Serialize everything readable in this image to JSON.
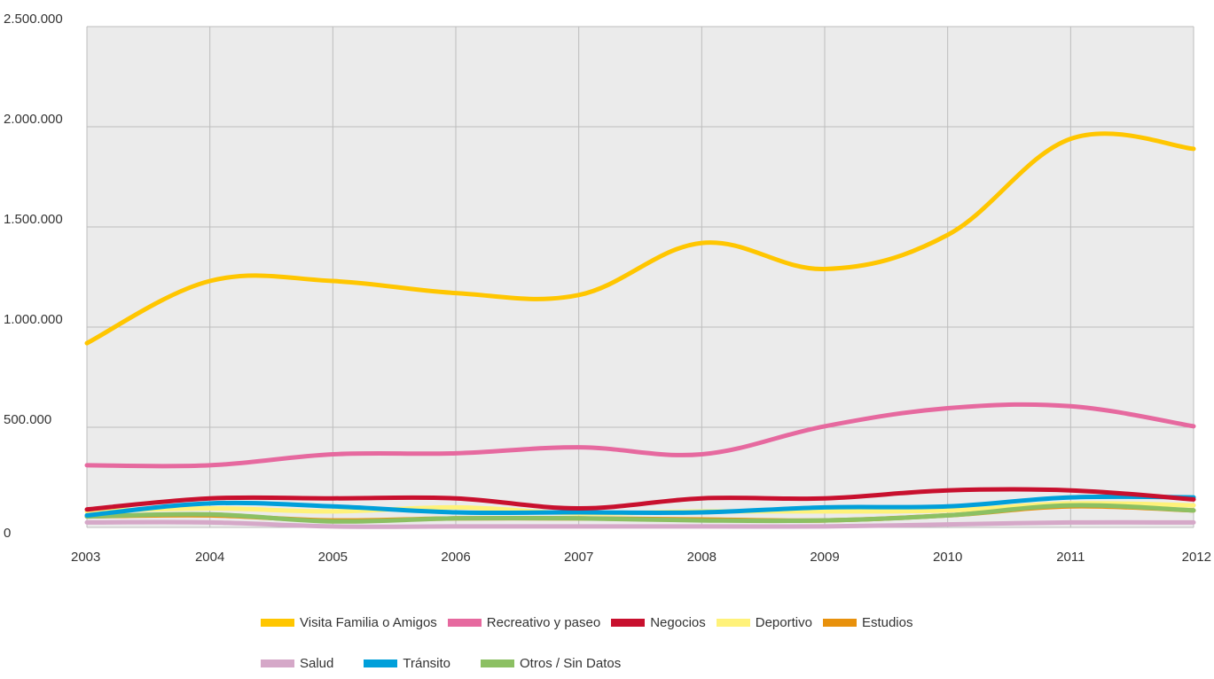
{
  "chart_data": {
    "type": "line",
    "title": "",
    "xlabel": "",
    "ylabel": "",
    "x": [
      "2003",
      "2004",
      "2005",
      "2006",
      "2007",
      "2008",
      "2009",
      "2010",
      "2011",
      "2012"
    ],
    "y_ticks": [
      "0",
      "500.000",
      "1.000.000",
      "1.500.000",
      "2.000.000",
      "2.500.000"
    ],
    "ylim": [
      0,
      2500000
    ],
    "grid": true,
    "legend_position": "bottom",
    "series": [
      {
        "name": "Visita Familia o Amigos",
        "color": "#FFC600",
        "values": [
          920000,
          1230000,
          1230000,
          1170000,
          1160000,
          1420000,
          1290000,
          1460000,
          1940000,
          1890000
        ]
      },
      {
        "name": "Recreativo y paseo",
        "color": "#E6699F",
        "values": [
          310000,
          310000,
          365000,
          370000,
          400000,
          365000,
          505000,
          595000,
          605000,
          505000
        ]
      },
      {
        "name": "Negocios",
        "color": "#C8102E",
        "values": [
          90000,
          145000,
          145000,
          145000,
          95000,
          145000,
          145000,
          185000,
          185000,
          140000
        ]
      },
      {
        "name": "Deportivo",
        "color": "#FFF27A",
        "values": [
          80000,
          95000,
          80000,
          100000,
          70000,
          80000,
          80000,
          85000,
          120000,
          110000
        ]
      },
      {
        "name": "Estudios",
        "color": "#E8910C",
        "values": [
          55000,
          60000,
          35000,
          45000,
          45000,
          40000,
          35000,
          60000,
          105000,
          85000
        ]
      },
      {
        "name": "Salud",
        "color": "#D5A8C8",
        "values": [
          25000,
          25000,
          5000,
          5000,
          5000,
          5000,
          5000,
          15000,
          25000,
          25000
        ]
      },
      {
        "name": "Tránsito",
        "color": "#009FDA",
        "values": [
          60000,
          120000,
          105000,
          75000,
          75000,
          75000,
          100000,
          105000,
          150000,
          150000
        ]
      },
      {
        "name": "Otros / Sin Datos",
        "color": "#8CC063",
        "values": [
          55000,
          65000,
          30000,
          45000,
          45000,
          35000,
          35000,
          60000,
          110000,
          85000
        ]
      }
    ]
  }
}
